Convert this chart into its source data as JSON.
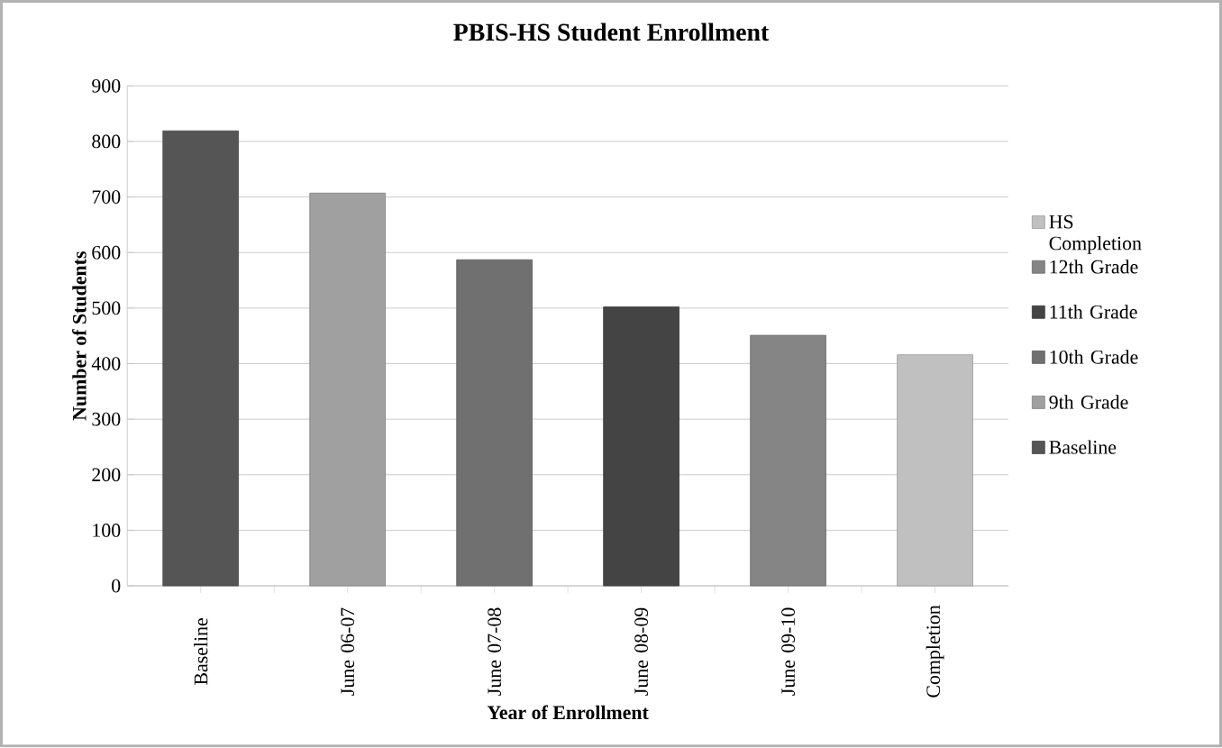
{
  "chart_data": {
    "type": "bar",
    "title": "PBIS-HS Student Enrollment",
    "xlabel": "Year of Enrollment",
    "ylabel": "Number of Students",
    "categories": [
      "Baseline",
      "June 06-07",
      "June 07-08",
      "June 08-09",
      "June 09-10",
      "Completion"
    ],
    "series": [
      {
        "name": "Baseline",
        "color": "#555555",
        "values": [
          819,
          null,
          null,
          null,
          null,
          null
        ]
      },
      {
        "name": "9th Grade",
        "color": "#a0a0a0",
        "values": [
          null,
          707,
          null,
          null,
          null,
          null
        ]
      },
      {
        "name": "10th Grade",
        "color": "#707070",
        "values": [
          null,
          null,
          587,
          null,
          null,
          null
        ]
      },
      {
        "name": "11th Grade",
        "color": "#444444",
        "values": [
          null,
          null,
          null,
          502,
          null,
          null
        ]
      },
      {
        "name": "12th Grade",
        "color": "#858585",
        "values": [
          null,
          null,
          null,
          null,
          451,
          null
        ]
      },
      {
        "name": "HS Completion",
        "color": "#c0c0c0",
        "values": [
          null,
          null,
          null,
          null,
          null,
          416
        ]
      }
    ],
    "ylim": [
      0,
      900
    ],
    "yticks": [
      0,
      100,
      200,
      300,
      400,
      500,
      600,
      700,
      800,
      900
    ],
    "grid": "y",
    "legend": "right"
  }
}
